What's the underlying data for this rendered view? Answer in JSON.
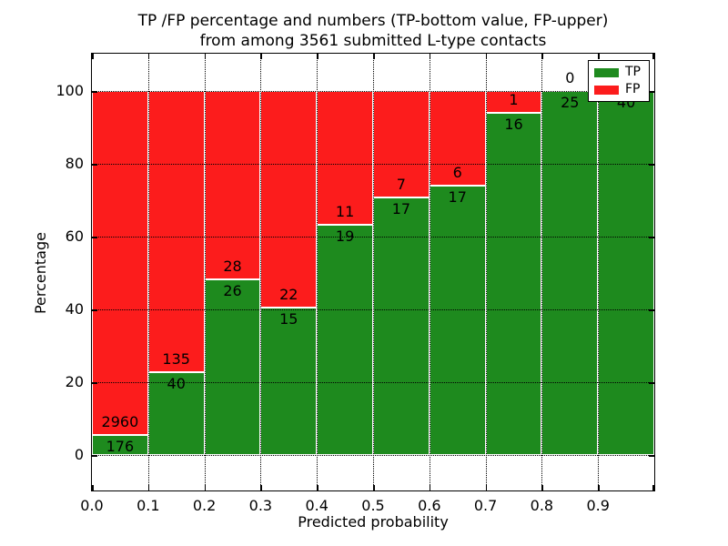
{
  "chart_data": {
    "type": "bar",
    "variant": "stacked-percentage",
    "title_line1": "TP /FP percentage and numbers (TP-bottom value, FP-upper)",
    "title_line2": "from among 3561 submitted L-type contacts",
    "xlabel": "Predicted probability",
    "ylabel": "Percentage",
    "total_contacts": 3561,
    "x_tick_labels": [
      "0.0",
      "0.1",
      "0.2",
      "0.3",
      "0.4",
      "0.5",
      "0.6",
      "0.7",
      "0.8",
      "0.9"
    ],
    "y_ticks": [
      0,
      20,
      40,
      60,
      80,
      100
    ],
    "xlim": [
      0.0,
      1.0
    ],
    "ylim": [
      -10,
      110
    ],
    "grid": "dotted",
    "bin_width": 0.1,
    "categories": [
      "0.0-0.1",
      "0.1-0.2",
      "0.2-0.3",
      "0.3-0.4",
      "0.4-0.5",
      "0.5-0.6",
      "0.6-0.7",
      "0.7-0.8",
      "0.8-0.9",
      "0.9-1.0"
    ],
    "series": [
      {
        "name": "TP",
        "color": "#1E8A1E",
        "values": [
          176,
          40,
          26,
          15,
          19,
          17,
          17,
          16,
          25,
          40
        ]
      },
      {
        "name": "FP",
        "color": "#FC1C1C",
        "values": [
          2960,
          135,
          28,
          22,
          11,
          7,
          6,
          1,
          0,
          0
        ]
      }
    ],
    "tp_percent": [
      5.61,
      22.86,
      48.15,
      40.54,
      63.33,
      70.83,
      73.91,
      94.12,
      100,
      100
    ],
    "fp_labels": [
      "2960",
      "135",
      "28",
      "22",
      "11",
      "7",
      "6",
      "1",
      "0",
      "0"
    ],
    "tp_labels": [
      "176",
      "40",
      "26",
      "15",
      "19",
      "17",
      "17",
      "16",
      "25",
      "40"
    ],
    "legend": [
      {
        "label": "TP",
        "color": "#1E8A1E"
      },
      {
        "label": "FP",
        "color": "#FC1C1C"
      }
    ],
    "legend_position": "upper-right"
  }
}
